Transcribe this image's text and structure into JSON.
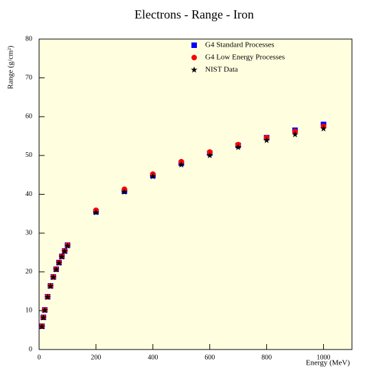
{
  "chart_data": {
    "type": "scatter",
    "title": "Electrons - Range - Iron",
    "x_label": "Energy (MeV)",
    "y_label": "Range (g/cm²)",
    "x": [
      10,
      15,
      20,
      30,
      40,
      50,
      60,
      70,
      80,
      90,
      100,
      200,
      300,
      400,
      500,
      600,
      700,
      800,
      900,
      1000
    ],
    "series": [
      {
        "name": "G4 Standard Processes",
        "color": "#0000ff",
        "marker": "square",
        "values": [
          6.0,
          8.3,
          10.2,
          13.6,
          16.4,
          18.7,
          20.7,
          22.4,
          24.0,
          25.4,
          26.9,
          35.5,
          40.8,
          44.8,
          48.0,
          50.6,
          52.6,
          54.6,
          56.5,
          58.0
        ]
      },
      {
        "name": "G4 Low Energy Processes",
        "color": "#ff0000",
        "marker": "circle",
        "values": [
          6.0,
          8.3,
          10.2,
          13.6,
          16.4,
          18.7,
          20.7,
          22.4,
          24.0,
          25.4,
          26.9,
          35.9,
          41.3,
          45.2,
          48.4,
          50.9,
          52.8,
          54.6,
          56.2,
          57.5
        ]
      },
      {
        "name": "NIST Data",
        "color": "#000000",
        "marker": "star",
        "values": [
          5.9,
          8.2,
          10.1,
          13.5,
          16.3,
          18.6,
          20.6,
          22.3,
          23.9,
          25.3,
          26.7,
          35.3,
          40.6,
          44.6,
          47.6,
          50.0,
          52.1,
          53.9,
          55.4,
          56.9
        ]
      }
    ],
    "xlim": [
      0,
      1100
    ],
    "xticks": [
      0,
      200,
      400,
      600,
      800,
      1000
    ],
    "ylim": [
      0,
      80
    ],
    "yticks": [
      0,
      10,
      20,
      30,
      40,
      50,
      60,
      70,
      80
    ],
    "legend": "top"
  }
}
